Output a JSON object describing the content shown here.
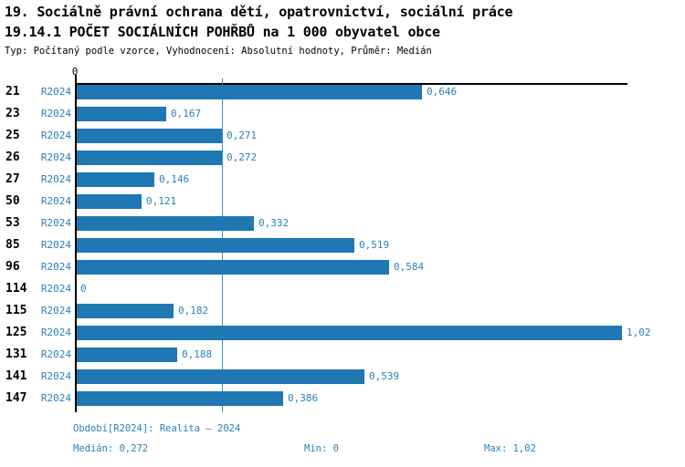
{
  "header": {
    "title_line1": "19. Sociálně právní ochrana dětí, opatrovnictví, sociální práce",
    "title_line2": "19.14.1 POČET SOCIÁLNÍCH POHŘBŮ na 1 000 obyvatel obce",
    "subtitle": "Typ: Počítaný podle vzorce, Vyhodnocení: Absolutní hodnoty, Průměr: Medián"
  },
  "chart_data": {
    "type": "bar",
    "orientation": "horizontal",
    "title": "19.14.1 POČET SOCIÁLNÍCH POHŘBŮ na 1 000 obyvatel obce",
    "categories": [
      "21",
      "23",
      "25",
      "26",
      "27",
      "50",
      "53",
      "85",
      "96",
      "114",
      "115",
      "125",
      "131",
      "141",
      "147"
    ],
    "period_label": "R2024",
    "series": [
      {
        "name": "R2024",
        "values": [
          0.646,
          0.167,
          0.271,
          0.272,
          0.146,
          0.121,
          0.332,
          0.519,
          0.584,
          0,
          0.182,
          1.02,
          0.188,
          0.539,
          0.386
        ],
        "value_labels": [
          "0,646",
          "0,167",
          "0,271",
          "0,272",
          "0,146",
          "0,121",
          "0,332",
          "0,519",
          "0,584",
          "0",
          "0,182",
          "1,02",
          "0,188",
          "0,539",
          "0,386"
        ]
      }
    ],
    "xlim": [
      0,
      1.03
    ],
    "x_zero_tick": "0",
    "grid": false,
    "legend_position": "none",
    "median": {
      "value": 0.272
    },
    "min": 0,
    "max": 1.02,
    "colors": {
      "bar": "#1f77b4",
      "median_line": "#3d8fc4",
      "blue_text": "#2980b9",
      "axis": "#000000"
    }
  },
  "footer": {
    "period_line": "Období[R2024]: Realita – 2024",
    "median_label": "Medián: 0,272",
    "min_label": "Min: 0",
    "max_label": "Max: 1,02"
  }
}
